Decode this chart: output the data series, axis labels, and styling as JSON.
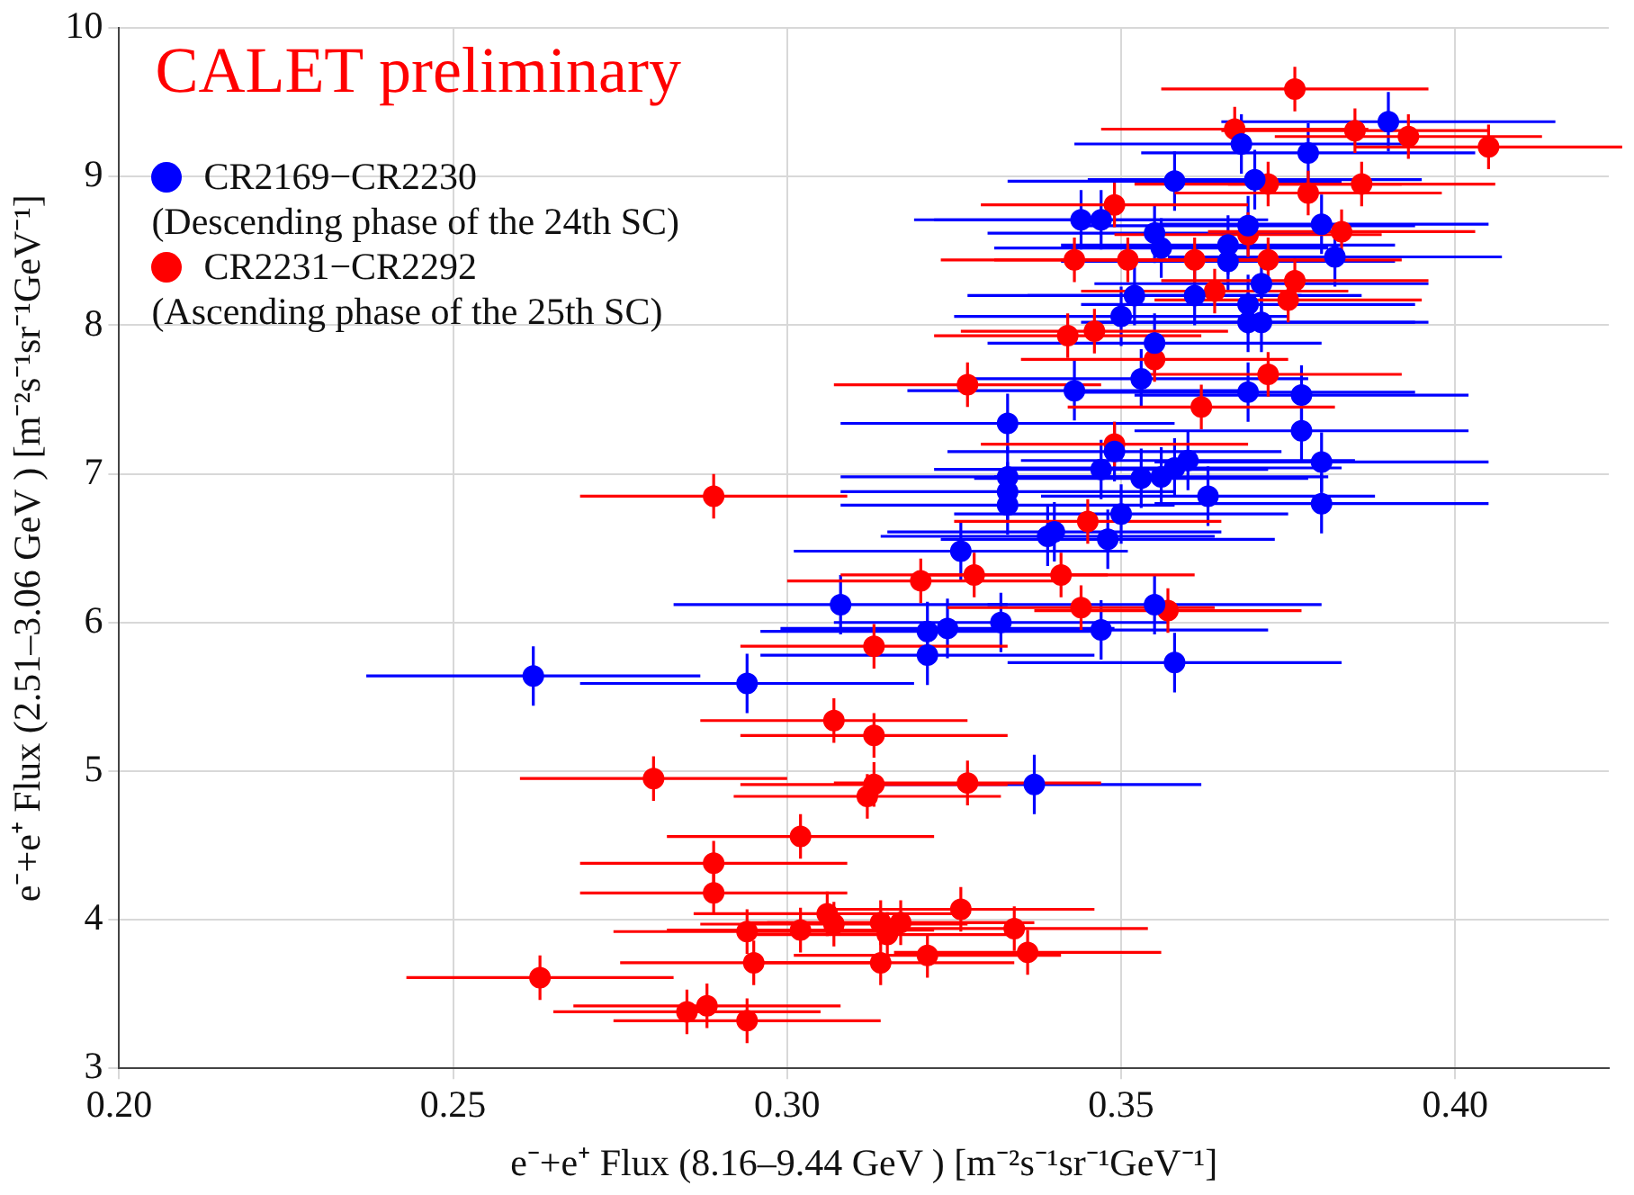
{
  "chart_data": {
    "type": "scatter",
    "xlabel": "e⁻+e⁺ Flux (8.16–9.44 GeV ) [m⁻²s⁻¹sr⁻¹GeV⁻¹]",
    "ylabel": "e⁻+e⁺ Flux (2.51–3.06 GeV ) [m⁻²s⁻¹sr⁻¹GeV⁻¹]",
    "annotations": [
      "CALET preliminary"
    ],
    "xlim": [
      0.2,
      0.423
    ],
    "xticks": [
      {
        "value": 0.2,
        "label": "0.20"
      },
      {
        "value": 0.25,
        "label": "0.25"
      },
      {
        "value": 0.3,
        "label": "0.30"
      },
      {
        "value": 0.35,
        "label": "0.35"
      },
      {
        "value": 0.4,
        "label": "0.40"
      }
    ],
    "ylim": [
      3,
      10
    ],
    "yticks": [
      3,
      4,
      5,
      6,
      7,
      8,
      9,
      10
    ],
    "grid": true,
    "legend": "top left",
    "marker": "circle",
    "series": [
      {
        "name": "CR2169−CR2230\n(Descending phase of the 24th SC)",
        "color": "#0000ff",
        "x": [
          0.308,
          0.321,
          0.324,
          0.321,
          0.262,
          0.294,
          0.355,
          0.332,
          0.347,
          0.358,
          0.337,
          0.326,
          0.368,
          0.39,
          0.378,
          0.358,
          0.37,
          0.344,
          0.347,
          0.355,
          0.356,
          0.366,
          0.369,
          0.38,
          0.382,
          0.366,
          0.371,
          0.361,
          0.369,
          0.369,
          0.371,
          0.352,
          0.35,
          0.355,
          0.343,
          0.353,
          0.369,
          0.377,
          0.333,
          0.377,
          0.349,
          0.38,
          0.333,
          0.333,
          0.333,
          0.347,
          0.353,
          0.356,
          0.358,
          0.36,
          0.363,
          0.38,
          0.35,
          0.339,
          0.34,
          0.348
        ],
        "values": [
          6.12,
          5.94,
          5.96,
          5.78,
          5.64,
          5.59,
          6.12,
          6.0,
          5.95,
          5.73,
          4.91,
          6.48,
          9.22,
          9.37,
          9.16,
          8.97,
          8.98,
          8.71,
          8.71,
          8.62,
          8.52,
          8.54,
          8.67,
          8.68,
          8.46,
          8.43,
          8.28,
          8.2,
          8.14,
          8.02,
          8.02,
          8.2,
          8.06,
          7.88,
          7.56,
          7.64,
          7.55,
          7.53,
          7.34,
          7.29,
          7.15,
          7.08,
          6.98,
          6.88,
          6.79,
          7.03,
          6.97,
          6.98,
          7.04,
          7.09,
          6.85,
          6.8,
          6.73,
          6.58,
          6.61,
          6.56
        ],
        "errors": [
          0.2,
          0.2,
          0.2,
          0.2,
          0.2,
          0.2,
          0.2,
          0.2,
          0.2,
          0.2,
          0.2,
          0.2,
          0.2,
          0.2,
          0.2,
          0.2,
          0.2,
          0.2,
          0.2,
          0.2,
          0.2,
          0.2,
          0.2,
          0.2,
          0.2,
          0.2,
          0.2,
          0.2,
          0.2,
          0.2,
          0.2,
          0.2,
          0.2,
          0.2,
          0.2,
          0.2,
          0.2,
          0.2,
          0.2,
          0.2,
          0.2,
          0.2,
          0.2,
          0.2,
          0.2,
          0.2,
          0.2,
          0.2,
          0.2,
          0.2,
          0.2,
          0.2,
          0.2,
          0.2,
          0.2,
          0.2
        ],
        "xerrors": [
          0.025,
          0.025,
          0.025,
          0.025,
          0.025,
          0.025,
          0.025,
          0.025,
          0.025,
          0.025,
          0.025,
          0.025,
          0.025,
          0.025,
          0.025,
          0.025,
          0.025,
          0.025,
          0.025,
          0.025,
          0.025,
          0.025,
          0.025,
          0.025,
          0.025,
          0.025,
          0.025,
          0.025,
          0.025,
          0.025,
          0.025,
          0.025,
          0.025,
          0.025,
          0.025,
          0.025,
          0.025,
          0.025,
          0.025,
          0.025,
          0.025,
          0.025,
          0.025,
          0.025,
          0.025,
          0.025,
          0.025,
          0.025,
          0.025,
          0.025,
          0.025,
          0.025,
          0.025,
          0.025,
          0.025,
          0.025
        ]
      },
      {
        "name": "CR2231−CR2292\n(Ascending phase of the 25th SC)",
        "color": "#ff0000",
        "x": [
          0.313,
          0.307,
          0.313,
          0.28,
          0.313,
          0.312,
          0.327,
          0.302,
          0.289,
          0.289,
          0.306,
          0.307,
          0.294,
          0.302,
          0.314,
          0.315,
          0.317,
          0.326,
          0.295,
          0.314,
          0.321,
          0.263,
          0.285,
          0.288,
          0.294,
          0.344,
          0.357,
          0.334,
          0.336,
          0.289,
          0.32,
          0.376,
          0.367,
          0.385,
          0.393,
          0.405,
          0.372,
          0.378,
          0.386,
          0.349,
          0.369,
          0.383,
          0.343,
          0.351,
          0.361,
          0.372,
          0.376,
          0.364,
          0.375,
          0.342,
          0.346,
          0.355,
          0.372,
          0.327,
          0.362,
          0.349,
          0.345,
          0.328,
          0.341
        ],
        "values": [
          5.84,
          5.34,
          5.24,
          4.95,
          4.91,
          4.83,
          4.92,
          4.56,
          4.38,
          4.18,
          4.04,
          3.97,
          3.92,
          3.93,
          3.98,
          3.9,
          3.98,
          4.07,
          3.71,
          3.71,
          3.76,
          3.61,
          3.38,
          3.42,
          3.32,
          6.1,
          6.08,
          3.94,
          3.78,
          6.85,
          6.28,
          9.59,
          9.32,
          9.31,
          9.27,
          9.2,
          8.95,
          8.89,
          8.95,
          8.81,
          8.61,
          8.63,
          8.44,
          8.44,
          8.44,
          8.44,
          8.3,
          8.23,
          8.17,
          7.93,
          7.96,
          7.77,
          7.67,
          7.6,
          7.45,
          7.2,
          6.68,
          6.32,
          6.32
        ],
        "errors": [
          0.15,
          0.15,
          0.15,
          0.15,
          0.15,
          0.15,
          0.15,
          0.15,
          0.15,
          0.15,
          0.15,
          0.15,
          0.15,
          0.15,
          0.15,
          0.15,
          0.15,
          0.15,
          0.15,
          0.15,
          0.15,
          0.15,
          0.15,
          0.15,
          0.15,
          0.15,
          0.15,
          0.15,
          0.15,
          0.15,
          0.15,
          0.15,
          0.15,
          0.15,
          0.15,
          0.15,
          0.15,
          0.15,
          0.15,
          0.15,
          0.15,
          0.15,
          0.15,
          0.15,
          0.15,
          0.15,
          0.15,
          0.15,
          0.15,
          0.15,
          0.15,
          0.15,
          0.15,
          0.15,
          0.15,
          0.15,
          0.15,
          0.15,
          0.15
        ],
        "xerrors": [
          0.02,
          0.02,
          0.02,
          0.02,
          0.02,
          0.02,
          0.02,
          0.02,
          0.02,
          0.02,
          0.02,
          0.02,
          0.02,
          0.02,
          0.02,
          0.02,
          0.02,
          0.02,
          0.02,
          0.02,
          0.02,
          0.02,
          0.02,
          0.02,
          0.02,
          0.02,
          0.02,
          0.02,
          0.02,
          0.02,
          0.02,
          0.02,
          0.02,
          0.02,
          0.02,
          0.02,
          0.02,
          0.02,
          0.02,
          0.02,
          0.02,
          0.02,
          0.02,
          0.02,
          0.02,
          0.02,
          0.02,
          0.02,
          0.02,
          0.02,
          0.02,
          0.02,
          0.02,
          0.02,
          0.02,
          0.02,
          0.02,
          0.02,
          0.02
        ]
      }
    ]
  }
}
